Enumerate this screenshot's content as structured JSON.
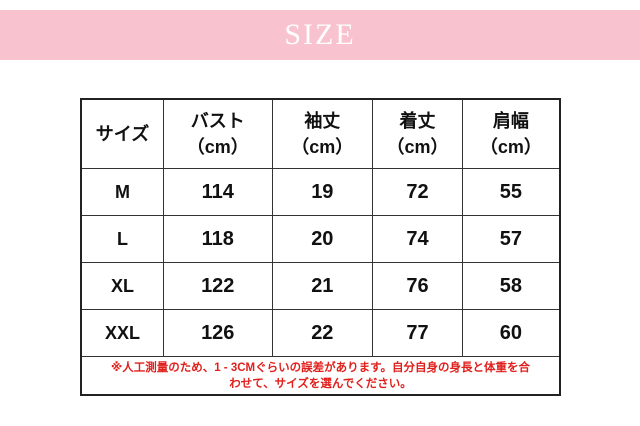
{
  "banner": {
    "title": "SIZE",
    "color": "#f8c3cf"
  },
  "table": {
    "headers": [
      {
        "label": "サイズ",
        "unit": ""
      },
      {
        "label": "バスト",
        "unit": "（cm）"
      },
      {
        "label": "袖丈",
        "unit": "（cm）"
      },
      {
        "label": "着丈",
        "unit": "（cm）"
      },
      {
        "label": "肩幅",
        "unit": "（cm）"
      }
    ],
    "rows": [
      [
        "M",
        "114",
        "19",
        "72",
        "55"
      ],
      [
        "L",
        "118",
        "20",
        "74",
        "57"
      ],
      [
        "XL",
        "122",
        "21",
        "76",
        "58"
      ],
      [
        "XXL",
        "126",
        "22",
        "77",
        "60"
      ]
    ],
    "note_line1": "※人工測量のため、1 - 3CMぐらいの誤差があります。自分自身の身長と体重を合",
    "note_line2": "わせて、サイズを選んでください。",
    "note_color": "#e0201c"
  }
}
